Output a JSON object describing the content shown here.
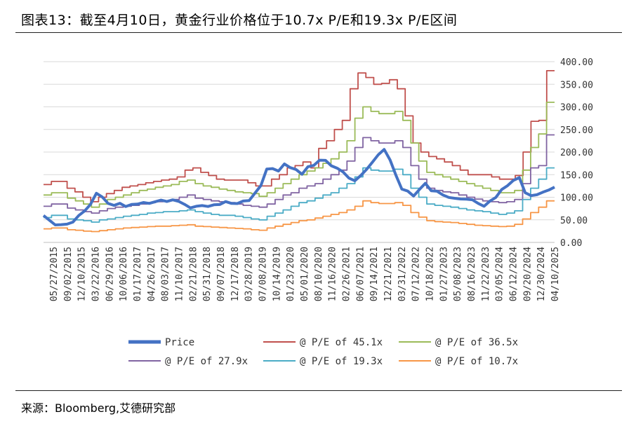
{
  "title": "图表13：截至4月10日，黄金行业价格位于10.7x P/E和19.3x P/E区间",
  "source": "来源：Bloomberg,艾德研究部",
  "chart_data": {
    "type": "line",
    "ylim": [
      0,
      400
    ],
    "yticks": [
      "0.00",
      "50.00",
      "100.00",
      "150.00",
      "200.00",
      "250.00",
      "300.00",
      "350.00",
      "400.00"
    ],
    "y_axis_position": "right",
    "grid": "horizontal",
    "legend_position": "bottom",
    "x_tick_labels": [
      "05/27/2015",
      "09/02/2015",
      "12/10/2015",
      "03/22/2016",
      "06/29/2016",
      "10/06/2016",
      "01/17/2017",
      "04/26/2017",
      "08/03/2017",
      "11/10/2017",
      "02/21/2018",
      "05/31/2018",
      "09/07/2018",
      "12/17/2018",
      "03/28/2019",
      "07/08/2019",
      "10/14/2019",
      "01/23/2020",
      "05/01/2020",
      "08/10/2020",
      "11/16/2020",
      "02/26/2021",
      "06/07/2021",
      "09/14/2021",
      "12/21/2021",
      "03/31/2022",
      "07/12/2022",
      "10/18/2022",
      "01/27/2023",
      "05/08/2023",
      "08/16/2023",
      "11/22/2023",
      "03/05/2024",
      "06/12/2024",
      "09/20/2024",
      "12/30/2024",
      "04/10/2025"
    ],
    "series": [
      {
        "name": "Price",
        "color": "#4472C4",
        "width": 4,
        "values": [
          62,
          50,
          38,
          37,
          42,
          45,
          58,
          72,
          85,
          108,
          98,
          88,
          82,
          85,
          82,
          85,
          84,
          86,
          88,
          90,
          92,
          93,
          95,
          90,
          82,
          78,
          80,
          80,
          82,
          84,
          83,
          88,
          88,
          86,
          90,
          95,
          110,
          125,
          160,
          165,
          158,
          172,
          168,
          162,
          150,
          165,
          172,
          182,
          180,
          172,
          165,
          155,
          140,
          138,
          148,
          160,
          180,
          195,
          205,
          180,
          150,
          118,
          112,
          105,
          118,
          130,
          112,
          115,
          105,
          98,
          100,
          97,
          95,
          92,
          88,
          80,
          90,
          102,
          118,
          125,
          135,
          145,
          110,
          102,
          108,
          112,
          115,
          120
        ]
      },
      {
        "name": "@ P/E of 45.1x",
        "color": "#C0504D",
        "width": 1.8,
        "values": [
          128,
          135,
          135,
          120,
          112,
          100,
          90,
          100,
          108,
          115,
          122,
          125,
          128,
          132,
          135,
          138,
          140,
          145,
          160,
          165,
          155,
          148,
          140,
          138,
          138,
          138,
          132,
          125,
          125,
          140,
          150,
          165,
          170,
          178,
          165,
          208,
          225,
          250,
          270,
          340,
          375,
          365,
          350,
          352,
          360,
          340,
          280,
          220,
          200,
          190,
          185,
          178,
          170,
          160,
          150,
          150,
          150,
          145,
          140,
          140,
          148,
          200,
          268,
          270,
          380
        ]
      },
      {
        "name": "@ P/E of 36.5x",
        "color": "#9BBB59",
        "width": 1.8,
        "values": [
          105,
          110,
          110,
          98,
          92,
          85,
          78,
          85,
          95,
          100,
          105,
          110,
          115,
          118,
          122,
          125,
          128,
          135,
          138,
          130,
          125,
          122,
          118,
          115,
          112,
          110,
          108,
          102,
          110,
          120,
          130,
          140,
          150,
          158,
          165,
          175,
          185,
          200,
          225,
          275,
          300,
          290,
          285,
          285,
          290,
          270,
          220,
          180,
          155,
          150,
          145,
          140,
          135,
          130,
          125,
          120,
          115,
          110,
          110,
          115,
          160,
          210,
          240,
          310
        ]
      },
      {
        "name": "@ P/E of 27.9x",
        "color": "#8064A2",
        "width": 1.8,
        "values": [
          80,
          85,
          85,
          76,
          72,
          68,
          65,
          70,
          75,
          78,
          80,
          82,
          85,
          88,
          90,
          92,
          95,
          100,
          105,
          98,
          95,
          92,
          90,
          88,
          85,
          82,
          80,
          78,
          85,
          95,
          105,
          110,
          120,
          125,
          130,
          140,
          150,
          160,
          180,
          210,
          232,
          225,
          220,
          220,
          225,
          210,
          170,
          140,
          120,
          115,
          112,
          110,
          105,
          100,
          96,
          92,
          90,
          88,
          90,
          95,
          130,
          165,
          170,
          238
        ]
      },
      {
        "name": "@ P/E of 19.3x",
        "color": "#4BACC6",
        "width": 1.8,
        "values": [
          55,
          60,
          60,
          52,
          50,
          48,
          45,
          50,
          52,
          55,
          58,
          60,
          62,
          65,
          66,
          68,
          68,
          70,
          72,
          68,
          65,
          62,
          60,
          60,
          58,
          55,
          52,
          50,
          58,
          65,
          72,
          80,
          88,
          92,
          98,
          105,
          110,
          120,
          130,
          145,
          165,
          160,
          158,
          158,
          162,
          150,
          120,
          100,
          85,
          82,
          80,
          78,
          75,
          72,
          70,
          68,
          65,
          62,
          65,
          70,
          95,
          120,
          140,
          165
        ]
      },
      {
        "name": "@ P/E of 10.7x",
        "color": "#F79646",
        "width": 1.8,
        "values": [
          30,
          32,
          32,
          28,
          27,
          25,
          24,
          26,
          28,
          30,
          32,
          33,
          34,
          35,
          36,
          36,
          37,
          38,
          39,
          36,
          35,
          34,
          33,
          32,
          31,
          30,
          28,
          27,
          32,
          36,
          40,
          44,
          48,
          50,
          54,
          58,
          62,
          66,
          72,
          80,
          92,
          88,
          86,
          86,
          88,
          82,
          66,
          56,
          48,
          46,
          45,
          44,
          42,
          40,
          38,
          37,
          36,
          35,
          36,
          40,
          52,
          66,
          78,
          92
        ]
      }
    ]
  }
}
